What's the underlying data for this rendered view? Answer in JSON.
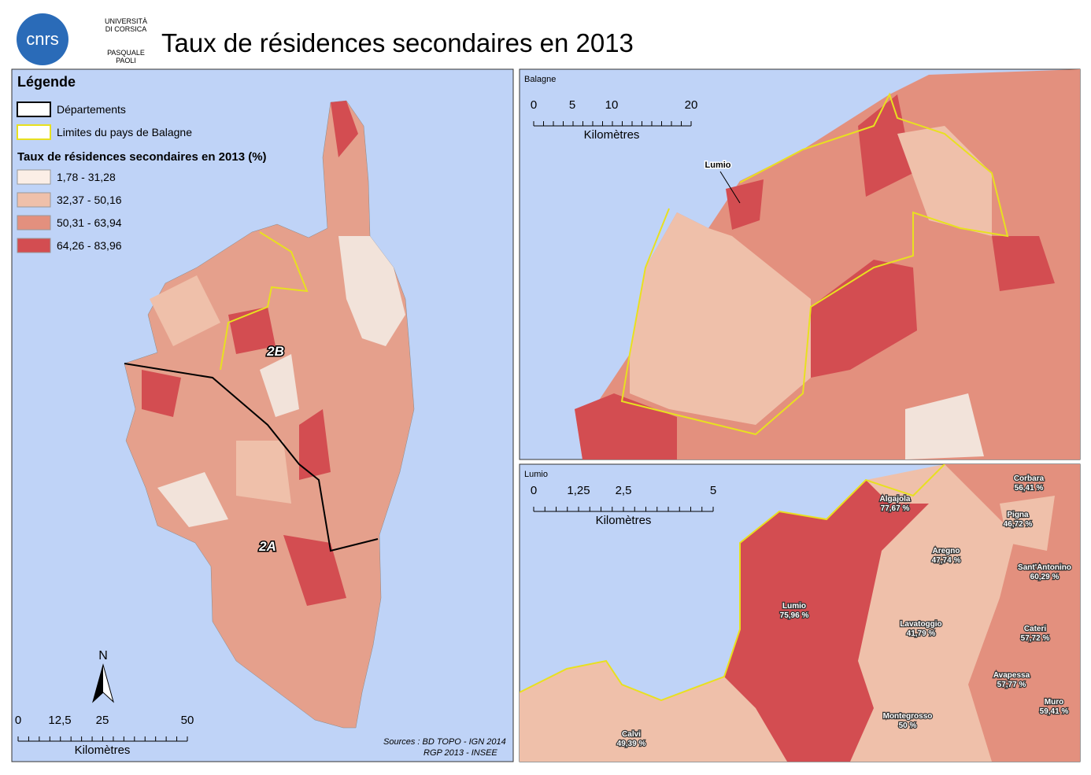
{
  "header": {
    "title": "Taux de résidences secondaires en 2013",
    "logo_cnrs": "cnrs",
    "logo_univ": [
      "UNIVERSITÀ",
      "DI CORSICA",
      "PASQUALE",
      "PAOLI"
    ]
  },
  "legend": {
    "title": "Légende",
    "items": [
      {
        "label": "Départements",
        "color": "#000000"
      },
      {
        "label": "Limites du pays de Balagne",
        "color": "#e8e020"
      }
    ],
    "class_title": "Taux de résidences secondaires en 2013 (%)",
    "classes": [
      {
        "label": "1,78 - 31,28",
        "color": "#fbeee6"
      },
      {
        "label": "32,37 - 50,16",
        "color": "#efc0aa"
      },
      {
        "label": "50,31 - 63,94",
        "color": "#e3907e"
      },
      {
        "label": "64,26 - 83,96",
        "color": "#d34d51"
      }
    ]
  },
  "main_map": {
    "labels": [
      "2B",
      "2A"
    ],
    "north": "N",
    "scale": {
      "ticks": [
        "0",
        "12,5",
        "25",
        "50"
      ],
      "unit": "Kilomètres"
    },
    "sources": [
      "Sources : BD TOPO - IGN 2014",
      "RGP 2013 - INSEE"
    ]
  },
  "balagne_map": {
    "title": "Balagne",
    "scale": {
      "ticks": [
        "0",
        "5",
        "10",
        "20"
      ],
      "unit": "Kilomètres"
    },
    "label": "Lumio"
  },
  "lumio_map": {
    "title": "Lumio",
    "scale": {
      "ticks": [
        "0",
        "1,25",
        "2,5",
        "5"
      ],
      "unit": "Kilomètres"
    },
    "communes": [
      {
        "name": "Corbara",
        "value": "56,41 %"
      },
      {
        "name": "Algajola",
        "value": "77,67 %"
      },
      {
        "name": "Pigna",
        "value": "46,72 %"
      },
      {
        "name": "Aregno",
        "value": "47,74 %"
      },
      {
        "name": "Sant'Antonino",
        "value": "60,29 %"
      },
      {
        "name": "Lumio",
        "value": "75,96 %"
      },
      {
        "name": "Lavatoggio",
        "value": "41,79 %"
      },
      {
        "name": "Cateri",
        "value": "57,72 %"
      },
      {
        "name": "Avapessa",
        "value": "57,77 %"
      },
      {
        "name": "Muro",
        "value": "59,41 %"
      },
      {
        "name": "Montegrosso",
        "value": "50 %"
      },
      {
        "name": "Calvi",
        "value": "49,39 %"
      }
    ]
  }
}
